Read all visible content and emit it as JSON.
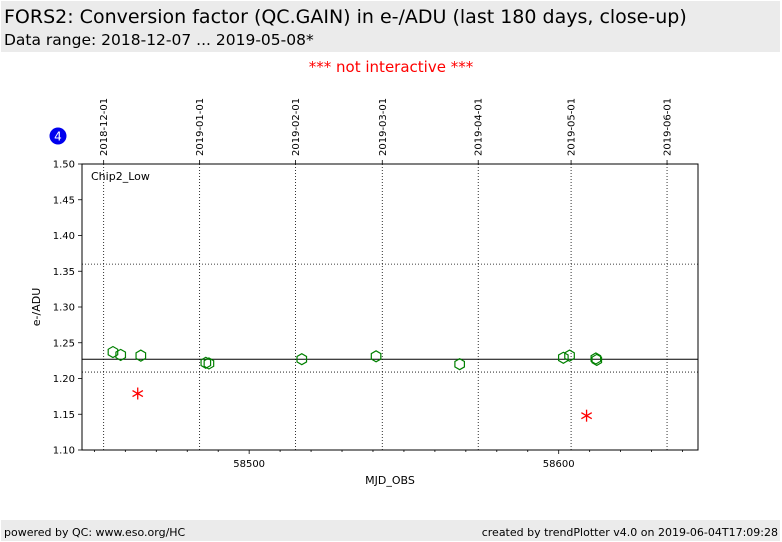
{
  "header": {
    "title": "FORS2: Conversion factor (QC.GAIN) in e-/ADU (last 180 days, close-up)",
    "subtitle": "Data range: 2018-12-07 ... 2019-05-08*"
  },
  "notice": "*** not interactive ***",
  "badge": "4",
  "footer": {
    "left": "powered by QC: www.eso.org/HC",
    "right": "created by trendPlotter v4.0 on 2019-06-04T17:09:28"
  },
  "colors": {
    "ok": "#008000",
    "outlier": "#ff0000",
    "badge": "#0000ee"
  },
  "chart_data": {
    "type": "scatter",
    "panel_label": "Chip2_Low",
    "xlabel": "MJD_OBS",
    "ylabel": "e-/ADU",
    "xlim": [
      58446,
      58645
    ],
    "ylim": [
      1.1,
      1.5
    ],
    "xticks": [
      58500,
      58600
    ],
    "yticks": [
      "1.10",
      "1.15",
      "1.20",
      "1.25",
      "1.30",
      "1.35",
      "1.40",
      "1.45",
      "1.50"
    ],
    "date_ticks": [
      {
        "mjd": 58453,
        "label": "2018-12-01"
      },
      {
        "mjd": 58484,
        "label": "2019-01-01"
      },
      {
        "mjd": 58515,
        "label": "2019-02-01"
      },
      {
        "mjd": 58543,
        "label": "2019-03-01"
      },
      {
        "mjd": 58574,
        "label": "2019-04-01"
      },
      {
        "mjd": 58604,
        "label": "2019-05-01"
      },
      {
        "mjd": 58635,
        "label": "2019-06-01"
      }
    ],
    "reference_lines": {
      "mean": 1.227,
      "lower": 1.209,
      "upper": 1.36
    },
    "grid": "dotted",
    "series": [
      {
        "marker": "hexagon-open",
        "x": [
          58456,
          58458.5,
          58465,
          58486,
          58487,
          58517,
          58541,
          58568,
          58601.5,
          58603.5,
          58612,
          58612.3
        ],
        "y": [
          1.237,
          1.233,
          1.232,
          1.222,
          1.221,
          1.227,
          1.231,
          1.22,
          1.229,
          1.232,
          1.228,
          1.226
        ]
      },
      {
        "marker": "asterisk",
        "x": [
          58464,
          58609
        ],
        "y": [
          1.179,
          1.148
        ]
      }
    ]
  }
}
